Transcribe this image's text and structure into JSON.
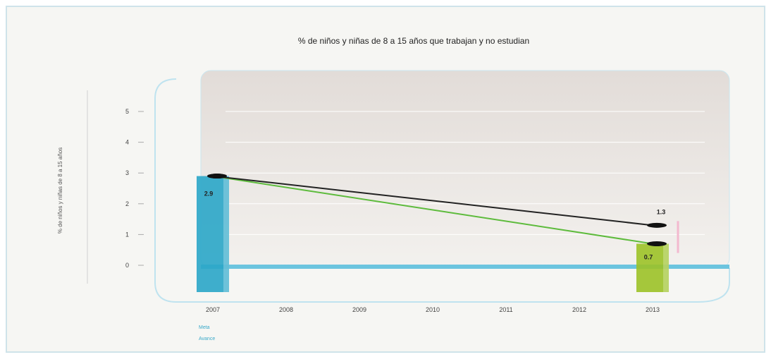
{
  "chart_data": {
    "type": "bar",
    "title": "% de niños y niñas de 8 a 15 años que trabajan y no estudian",
    "ylabel": "% de niños y niñas de 8 a 15 años",
    "xlabel": "",
    "categories": [
      "2007",
      "2008",
      "2009",
      "2010",
      "2011",
      "2012",
      "2013"
    ],
    "yticks": [
      0,
      1,
      2,
      3,
      4,
      5
    ],
    "ylim": [
      0,
      5
    ],
    "grid": true,
    "legend_position": "bottom-left",
    "bars": [
      {
        "x": "2007",
        "value": 2.9,
        "label": "2.9",
        "color": "#2aa6c8"
      },
      {
        "x": "2013",
        "value": 0.7,
        "label": "0.7",
        "color": "#9cc227"
      }
    ],
    "series": [
      {
        "values": [
          2.9,
          null,
          null,
          null,
          null,
          null,
          0.7
        ],
        "color": "#5dbb3c"
      },
      {
        "values": [
          2.9,
          null,
          null,
          null,
          null,
          null,
          1.3
        ],
        "color": "#222222"
      }
    ],
    "annotations": [
      {
        "x": "2013",
        "y": 1.3,
        "text": "1.3"
      }
    ],
    "legend": [
      "Meta",
      "Avance"
    ]
  }
}
